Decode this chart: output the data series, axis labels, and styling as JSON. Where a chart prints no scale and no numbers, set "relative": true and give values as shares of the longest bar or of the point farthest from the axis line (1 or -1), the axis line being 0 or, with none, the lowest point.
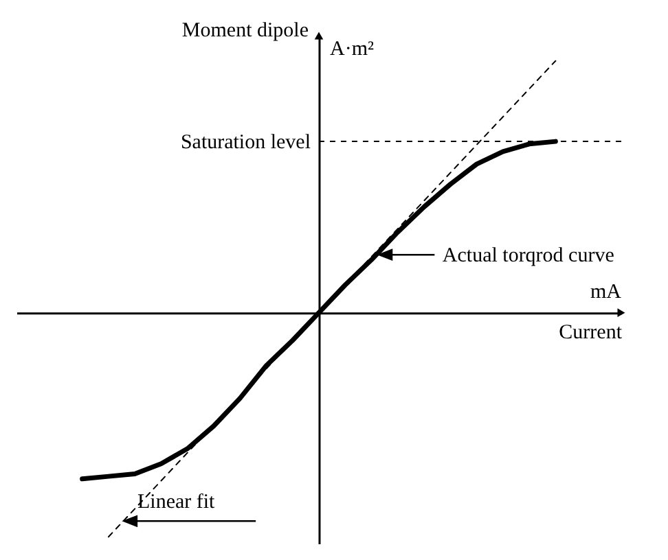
{
  "chart_data": {
    "type": "line",
    "relative": true,
    "xlabel": "Current",
    "ylabel": "Moment dipole",
    "marker": "none",
    "categories": [
      null,
      null,
      null,
      null,
      null,
      null,
      null,
      null,
      null,
      null,
      null,
      null,
      null,
      null,
      null,
      null,
      null,
      null,
      null,
      null,
      null,
      null,
      null
    ],
    "series": [
      {
        "name": "Actual torqrod curve",
        "color": "#000000",
        "line_style": "solid",
        "values": [
          null,
          null,
          -0.66,
          -0.65,
          -0.64,
          -0.6,
          -0.54,
          -0.45,
          -0.34,
          -0.21,
          -0.11,
          0,
          0.11,
          0.21,
          0.32,
          0.42,
          0.51,
          0.59,
          0.64,
          0.67,
          0.68,
          null,
          null
        ]
      },
      {
        "name": "Linear fit",
        "color": "#000000",
        "line_style": "dashed",
        "values": [
          null,
          null,
          null,
          -0.89,
          null,
          null,
          null,
          null,
          null,
          null,
          null,
          0,
          null,
          null,
          null,
          null,
          null,
          null,
          null,
          null,
          1.0,
          null,
          null
        ]
      }
    ],
    "ref_lines": [
      {
        "axis": "y",
        "value": 0.68,
        "label": "Saturation level",
        "line_style": "dashed"
      }
    ],
    "annotations": [
      "A·m²",
      "mA"
    ]
  }
}
